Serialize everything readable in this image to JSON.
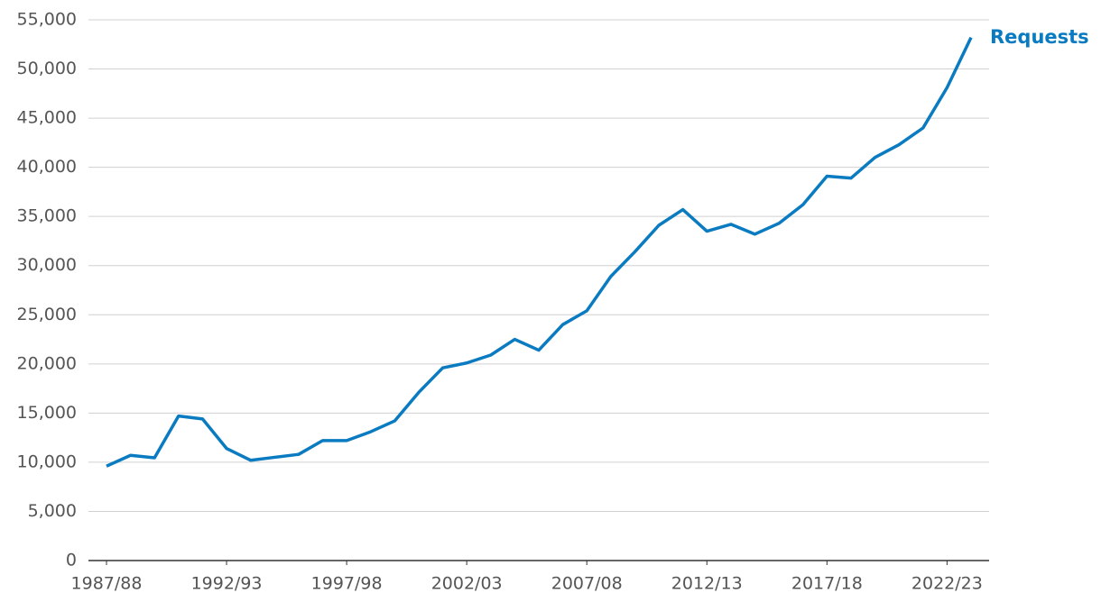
{
  "chart_data": {
    "type": "line",
    "categories": [
      "1987/88",
      null,
      null,
      null,
      null,
      "1992/93",
      null,
      null,
      null,
      null,
      "1997/98",
      null,
      null,
      null,
      null,
      "2002/03",
      null,
      null,
      null,
      null,
      "2007/08",
      null,
      null,
      null,
      null,
      "2012/13",
      null,
      null,
      null,
      null,
      "2017/18",
      null,
      null,
      null,
      null,
      "2022/23",
      null
    ],
    "series": [
      {
        "name": "Requests",
        "color": "#0a7bc1",
        "values": [
          9600,
          10700,
          10450,
          14700,
          14400,
          11400,
          10200,
          10500,
          10800,
          12200,
          12200,
          13100,
          14200,
          17100,
          19600,
          20100,
          20900,
          22500,
          21400,
          24000,
          25400,
          28900,
          31400,
          34100,
          35700,
          33500,
          34200,
          33200,
          34300,
          36200,
          39100,
          38900,
          41000,
          42300,
          44000,
          48100,
          53200
        ]
      }
    ],
    "ylim": [
      0,
      55000
    ],
    "yticks": [
      0,
      {
        "value": 5000,
        "label": "5,000"
      },
      {
        "value": 10000,
        "label": "10,000"
      },
      {
        "value": 15000,
        "label": "15,000"
      },
      {
        "value": 20000,
        "label": "20,000"
      },
      {
        "value": 25000,
        "label": "25,000"
      },
      {
        "value": 30000,
        "label": "30,000"
      },
      {
        "value": 35000,
        "label": "35,000"
      },
      {
        "value": 40000,
        "label": "40,000"
      },
      {
        "value": 45000,
        "label": "45,000"
      },
      {
        "value": 50000,
        "label": "50,000"
      },
      {
        "value": 55000,
        "label": "55,000"
      }
    ],
    "grid": true
  }
}
